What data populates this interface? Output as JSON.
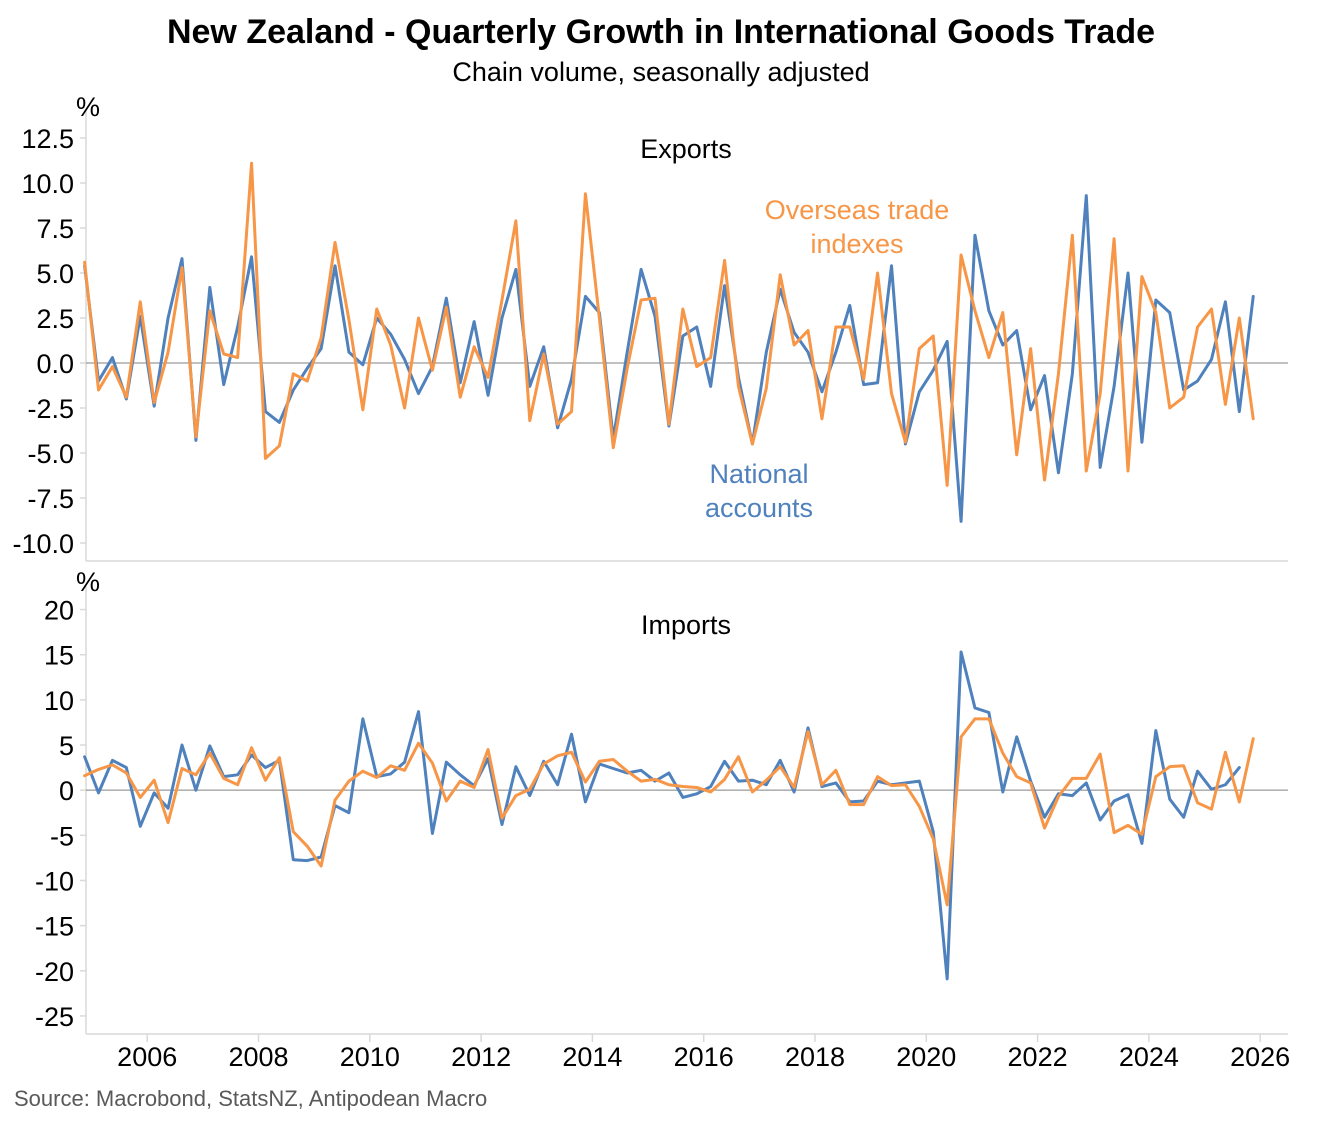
{
  "chart_data": {
    "type": "line",
    "title": "New Zealand - Quarterly Growth in International Goods Trade",
    "subtitle": "Chain volume, seasonally adjusted",
    "source": "Source: Macrobond, StatsNZ, Antipodean Macro",
    "x_ticks": [
      "2006",
      "2008",
      "2010",
      "2012",
      "2014",
      "2016",
      "2018",
      "2020",
      "2022",
      "2024",
      "2026"
    ],
    "x_range": [
      2004.9,
      2026.5
    ],
    "colors": {
      "national_accounts": "#4f81bd",
      "overseas_trade_indexes": "#f79646",
      "zero_line": "#808080",
      "axis": "#d9d9d9"
    },
    "panels": [
      {
        "name": "exports",
        "title": "Exports",
        "unit": "%",
        "ylim": [
          -11.0,
          13.5
        ],
        "yticks": [
          "12.5",
          "10.0",
          "7.5",
          "5.0",
          "2.5",
          "0.0",
          "-2.5",
          "-5.0",
          "-7.5",
          "-10.0"
        ],
        "annotations": [
          {
            "lines": [
              "Overseas trade",
              "indexes"
            ],
            "series": "overseas_trade_indexes"
          },
          {
            "lines": [
              "National",
              "accounts"
            ],
            "series": "national_accounts"
          }
        ],
        "series": [
          {
            "name": "National accounts",
            "key": "national_accounts",
            "start": 2004.875,
            "values": [
              5.4,
              -1.0,
              0.3,
              -2.0,
              2.6,
              -2.4,
              2.5,
              5.8,
              -4.3,
              4.2,
              -1.2,
              2.0,
              5.9,
              -2.7,
              -3.3,
              -1.5,
              -0.3,
              0.8,
              5.4,
              0.6,
              -0.1,
              2.5,
              1.6,
              0.2,
              -1.7,
              -0.2,
              3.6,
              -1.1,
              2.3,
              -1.8,
              2.5,
              5.2,
              -1.3,
              0.9,
              -3.6,
              -0.9,
              3.7,
              2.8,
              -4.2,
              0.6,
              5.2,
              2.6,
              -3.5,
              1.5,
              2.0,
              -1.3,
              4.3,
              -0.8,
              -4.5,
              0.6,
              4.1,
              1.7,
              0.6,
              -1.6,
              0.6,
              3.2,
              -1.2,
              -1.1,
              5.4,
              -4.5,
              -1.6,
              -0.4,
              1.2,
              -8.8,
              7.1,
              2.9,
              1.0,
              1.8,
              -2.6,
              -0.7,
              -6.1,
              -0.6,
              9.3,
              -5.8,
              -1.3,
              5.0,
              -4.4,
              3.5,
              2.8,
              -1.5,
              -1.0,
              0.2,
              3.4,
              -2.7,
              3.7
            ]
          },
          {
            "name": "Overseas trade indexes",
            "key": "overseas_trade_indexes",
            "start": 2004.875,
            "values": [
              5.6,
              -1.5,
              -0.2,
              -1.9,
              3.4,
              -2.2,
              0.6,
              5.3,
              -4.1,
              2.9,
              0.5,
              0.3,
              11.1,
              -5.3,
              -4.6,
              -0.6,
              -1.0,
              1.4,
              6.7,
              2.4,
              -2.6,
              3.0,
              1.0,
              -2.5,
              2.5,
              -0.4,
              3.1,
              -1.9,
              0.9,
              -0.8,
              3.5,
              7.9,
              -3.2,
              0.5,
              -3.4,
              -2.7,
              9.4,
              2.5,
              -4.7,
              -0.3,
              3.5,
              3.6,
              -3.4,
              3.0,
              -0.2,
              0.3,
              5.7,
              -1.3,
              -4.5,
              -1.4,
              4.9,
              1.0,
              1.8,
              -3.1,
              2.0,
              2.0,
              -0.9,
              5.0,
              -1.7,
              -4.4,
              0.8,
              1.5,
              -6.8,
              6.0,
              2.9,
              0.3,
              2.8,
              -5.1,
              0.8,
              -6.5,
              -0.6,
              7.1,
              -6.0,
              -1.7,
              6.9,
              -6.0,
              4.8,
              2.8,
              -2.5,
              -1.9,
              2.0,
              3.0,
              -2.3,
              2.5,
              -3.1
            ]
          }
        ]
      },
      {
        "name": "imports",
        "title": "Imports",
        "unit": "%",
        "ylim": [
          -27.0,
          21.5
        ],
        "yticks": [
          "20",
          "15",
          "10",
          "5",
          "0",
          "-5",
          "-10",
          "-15",
          "-20",
          "-25"
        ],
        "annotations": [],
        "series": [
          {
            "name": "National accounts",
            "key": "national_accounts",
            "start": 2004.875,
            "values": [
              3.7,
              -0.3,
              3.3,
              2.5,
              -4.0,
              -0.3,
              -2.0,
              5.0,
              0.0,
              4.9,
              1.5,
              1.7,
              3.9,
              2.5,
              3.3,
              -7.7,
              -7.8,
              -7.4,
              -1.7,
              -2.5,
              7.9,
              1.5,
              1.8,
              3.1,
              8.7,
              -4.8,
              3.1,
              1.7,
              0.5,
              3.5,
              -3.8,
              2.6,
              -0.6,
              3.2,
              0.6,
              6.2,
              -1.3,
              2.9,
              2.4,
              1.9,
              2.2,
              1.0,
              1.9,
              -0.8,
              -0.4,
              0.4,
              3.2,
              1.0,
              1.1,
              0.6,
              3.3,
              -0.2,
              6.9,
              0.4,
              0.8,
              -1.3,
              -1.2,
              1.0,
              0.6,
              0.8,
              1.0,
              -4.6,
              -20.9,
              15.3,
              9.1,
              8.6,
              -0.2,
              5.9,
              1.0,
              -3.0,
              -0.4,
              -0.6,
              0.8,
              -3.3,
              -1.2,
              -0.5,
              -5.9,
              6.6,
              -1.0,
              -3.0,
              2.1,
              0.1,
              0.6,
              2.5
            ]
          },
          {
            "name": "Overseas trade indexes",
            "key": "overseas_trade_indexes",
            "start": 2004.875,
            "values": [
              1.6,
              2.3,
              2.8,
              1.9,
              -0.8,
              1.1,
              -3.6,
              2.4,
              1.7,
              4.1,
              1.3,
              0.6,
              4.7,
              1.1,
              3.6,
              -4.6,
              -6.2,
              -8.4,
              -1.1,
              1.0,
              2.1,
              1.4,
              2.7,
              2.2,
              5.2,
              3.0,
              -1.2,
              1.0,
              0.3,
              4.5,
              -3.1,
              -0.6,
              0.1,
              2.9,
              3.8,
              4.2,
              0.9,
              3.2,
              3.4,
              2.1,
              1.0,
              1.2,
              0.6,
              0.4,
              0.3,
              -0.2,
              1.2,
              3.7,
              -0.2,
              1.1,
              2.6,
              0.3,
              6.5,
              0.6,
              2.2,
              -1.6,
              -1.6,
              1.5,
              0.5,
              0.6,
              -1.8,
              -5.4,
              -12.7,
              5.9,
              7.9,
              7.9,
              4.1,
              1.5,
              0.8,
              -4.2,
              -0.7,
              1.3,
              1.3,
              4.0,
              -4.7,
              -3.9,
              -4.9,
              1.5,
              2.6,
              2.7,
              -1.4,
              -2.1,
              4.2,
              -1.3,
              5.7
            ]
          }
        ]
      }
    ]
  }
}
